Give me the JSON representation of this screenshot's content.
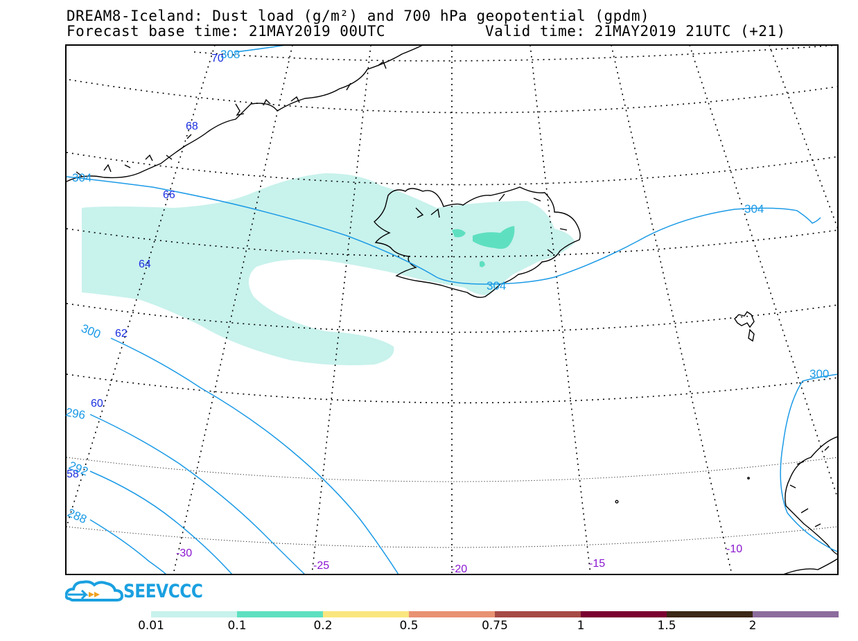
{
  "title": {
    "line1": "DREAM8-Iceland: Dust load (g/m²) and 700 hPa geopotential (gpdm)",
    "base_time": "Forecast base time: 21MAY2019 00UTC",
    "valid_time": "Valid time: 21MAY2019 21UTC (+21)"
  },
  "logo": {
    "text": "SEEVCCC",
    "icon": "cloud-logo-icon"
  },
  "colors": {
    "dust_001": "#c8f2ec",
    "dust_01": "#5ee0c0",
    "contour": "#1a9ae6",
    "lat_label": "#1a2ee0",
    "lon_label": "#8a16d0",
    "coast": "#000000",
    "grid": "#000000"
  },
  "latitude_labels": [
    "70",
    "68",
    "66",
    "64",
    "62",
    "60",
    "58"
  ],
  "longitude_labels": [
    "-30",
    "-25",
    "-20",
    "-15",
    "-10"
  ],
  "contour_labels": [
    "308",
    "304",
    "304",
    "304",
    "300",
    "300",
    "296",
    "292",
    "288"
  ],
  "colorbar": {
    "levels": [
      "0.01",
      "0.1",
      "0.2",
      "0.5",
      "0.75",
      "1",
      "1.5",
      "2"
    ],
    "colors": [
      "#c8f2ec",
      "#5ee0c0",
      "#fae67e",
      "#e89272",
      "#a64a46",
      "#7a0030",
      "#3c2816",
      "#8c6c9c"
    ]
  }
}
